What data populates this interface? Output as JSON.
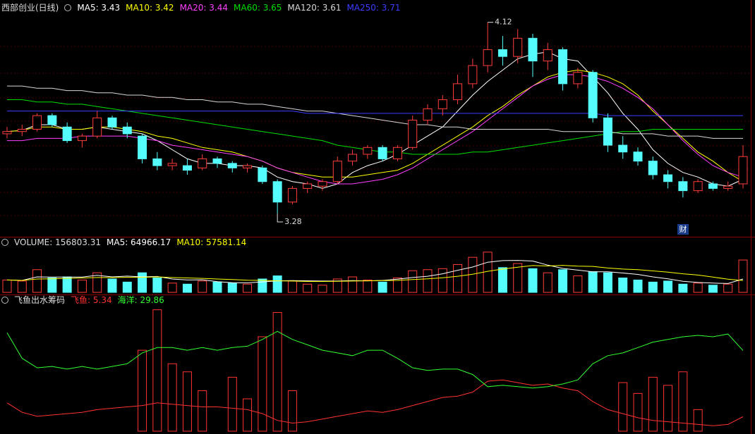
{
  "chart_data": [
    {
      "type": "candlestick",
      "title": "西部创业(日线)",
      "marker_text": "财",
      "up_color": "#ff3c3c",
      "down_color": "#54fcfc",
      "ylim": [
        3.19,
        4.15
      ],
      "open": [
        3.63,
        3.64,
        3.65,
        3.71,
        3.66,
        3.6,
        3.62,
        3.7,
        3.66,
        3.62,
        3.52,
        3.49,
        3.49,
        3.48,
        3.52,
        3.5,
        3.48,
        3.48,
        3.42,
        3.33,
        3.39,
        3.4,
        3.42,
        3.51,
        3.54,
        3.57,
        3.52,
        3.57,
        3.69,
        3.74,
        3.78,
        3.85,
        3.93,
        4.0,
        3.97,
        4.05,
        3.95,
        4.0,
        3.85,
        3.9,
        3.7,
        3.58,
        3.55,
        3.51,
        3.45,
        3.42,
        3.38,
        3.41,
        3.39,
        3.41
      ],
      "high": [
        3.66,
        3.67,
        3.72,
        3.72,
        3.68,
        3.63,
        3.73,
        3.71,
        3.68,
        3.63,
        3.55,
        3.52,
        3.52,
        3.54,
        3.53,
        3.51,
        3.5,
        3.49,
        3.43,
        3.4,
        3.42,
        3.43,
        3.53,
        3.56,
        3.58,
        3.58,
        3.58,
        3.71,
        3.76,
        3.8,
        3.89,
        3.96,
        4.12,
        4.06,
        4.09,
        4.07,
        4.03,
        4.01,
        3.92,
        3.91,
        3.72,
        3.62,
        3.57,
        3.53,
        3.47,
        3.44,
        3.43,
        3.42,
        3.42,
        3.58
      ],
      "low": [
        3.61,
        3.62,
        3.64,
        3.66,
        3.59,
        3.57,
        3.61,
        3.65,
        3.61,
        3.5,
        3.47,
        3.47,
        3.45,
        3.47,
        3.48,
        3.46,
        3.46,
        3.41,
        3.28,
        3.32,
        3.37,
        3.38,
        3.41,
        3.49,
        3.52,
        3.51,
        3.51,
        3.56,
        3.67,
        3.71,
        3.76,
        3.83,
        3.9,
        3.93,
        3.94,
        3.88,
        3.91,
        3.82,
        3.83,
        3.68,
        3.55,
        3.52,
        3.49,
        3.43,
        3.39,
        3.35,
        3.37,
        3.38,
        3.38,
        3.39
      ],
      "close": [
        3.64,
        3.65,
        3.71,
        3.67,
        3.6,
        3.62,
        3.7,
        3.66,
        3.63,
        3.52,
        3.49,
        3.5,
        3.47,
        3.52,
        3.5,
        3.48,
        3.49,
        3.42,
        3.33,
        3.39,
        3.41,
        3.42,
        3.51,
        3.54,
        3.57,
        3.52,
        3.57,
        3.69,
        3.74,
        3.78,
        3.85,
        3.93,
        4.0,
        3.97,
        4.05,
        3.95,
        4.0,
        3.85,
        3.9,
        3.7,
        3.58,
        3.55,
        3.51,
        3.45,
        3.42,
        3.38,
        3.42,
        3.39,
        3.4,
        3.53
      ],
      "series": [
        {
          "legend": "MA5: 3.43",
          "color": "#ffffff",
          "values": [
            3.64,
            3.645,
            3.67,
            3.67,
            3.65,
            3.65,
            3.66,
            3.65,
            3.64,
            3.63,
            3.6,
            3.56,
            3.52,
            3.5,
            3.5,
            3.49,
            3.49,
            3.48,
            3.44,
            3.42,
            3.41,
            3.39,
            3.41,
            3.46,
            3.49,
            3.51,
            3.54,
            3.58,
            3.62,
            3.66,
            3.73,
            3.8,
            3.86,
            3.91,
            3.96,
            3.98,
            3.99,
            3.96,
            3.95,
            3.88,
            3.81,
            3.72,
            3.65,
            3.56,
            3.5,
            3.46,
            3.44,
            3.41,
            3.4,
            3.43
          ]
        },
        {
          "legend": "MA10: 3.42",
          "color": "#ffff00",
          "values": [
            3.64,
            3.645,
            3.66,
            3.66,
            3.65,
            3.65,
            3.66,
            3.66,
            3.65,
            3.64,
            3.62,
            3.61,
            3.59,
            3.57,
            3.56,
            3.55,
            3.53,
            3.51,
            3.48,
            3.46,
            3.45,
            3.44,
            3.44,
            3.44,
            3.45,
            3.46,
            3.47,
            3.5,
            3.54,
            3.58,
            3.62,
            3.66,
            3.71,
            3.75,
            3.8,
            3.84,
            3.88,
            3.9,
            3.91,
            3.9,
            3.88,
            3.85,
            3.8,
            3.73,
            3.67,
            3.61,
            3.55,
            3.51,
            3.46,
            3.42
          ]
        },
        {
          "legend": "MA20: 3.44",
          "color": "#ff40ff",
          "values": [
            3.6,
            3.6,
            3.61,
            3.61,
            3.61,
            3.62,
            3.62,
            3.62,
            3.62,
            3.61,
            3.6,
            3.58,
            3.57,
            3.56,
            3.55,
            3.54,
            3.53,
            3.51,
            3.48,
            3.46,
            3.44,
            3.42,
            3.41,
            3.41,
            3.42,
            3.43,
            3.45,
            3.48,
            3.52,
            3.56,
            3.6,
            3.64,
            3.69,
            3.74,
            3.79,
            3.84,
            3.87,
            3.89,
            3.89,
            3.88,
            3.86,
            3.83,
            3.79,
            3.74,
            3.67,
            3.6,
            3.54,
            3.49,
            3.46,
            3.44
          ]
        },
        {
          "legend": "MA60: 3.65",
          "color": "#00e000",
          "values": [
            3.78,
            3.78,
            3.77,
            3.77,
            3.76,
            3.76,
            3.75,
            3.74,
            3.73,
            3.72,
            3.71,
            3.7,
            3.69,
            3.68,
            3.67,
            3.66,
            3.65,
            3.64,
            3.63,
            3.62,
            3.61,
            3.6,
            3.58,
            3.57,
            3.56,
            3.55,
            3.55,
            3.54,
            3.54,
            3.54,
            3.54,
            3.55,
            3.55,
            3.56,
            3.57,
            3.58,
            3.59,
            3.6,
            3.61,
            3.62,
            3.63,
            3.64,
            3.64,
            3.65,
            3.65,
            3.65,
            3.65,
            3.65,
            3.65,
            3.65
          ]
        },
        {
          "legend": "MA120: 3.61",
          "color": "#d8d8d8",
          "values": [
            3.84,
            3.84,
            3.83,
            3.83,
            3.82,
            3.82,
            3.81,
            3.81,
            3.8,
            3.8,
            3.79,
            3.79,
            3.78,
            3.78,
            3.77,
            3.77,
            3.76,
            3.76,
            3.75,
            3.74,
            3.73,
            3.73,
            3.72,
            3.71,
            3.7,
            3.69,
            3.68,
            3.67,
            3.67,
            3.66,
            3.66,
            3.65,
            3.65,
            3.65,
            3.65,
            3.65,
            3.65,
            3.64,
            3.64,
            3.64,
            3.64,
            3.63,
            3.63,
            3.63,
            3.62,
            3.62,
            3.62,
            3.61,
            3.61,
            3.61
          ]
        },
        {
          "legend": "MA250: 3.71",
          "color": "#3c3cff",
          "values": [
            3.73,
            3.73,
            3.73,
            3.73,
            3.73,
            3.73,
            3.73,
            3.73,
            3.73,
            3.73,
            3.73,
            3.73,
            3.73,
            3.73,
            3.73,
            3.73,
            3.73,
            3.73,
            3.73,
            3.73,
            3.72,
            3.72,
            3.72,
            3.72,
            3.72,
            3.72,
            3.72,
            3.72,
            3.72,
            3.72,
            3.72,
            3.72,
            3.72,
            3.72,
            3.72,
            3.72,
            3.72,
            3.72,
            3.72,
            3.72,
            3.71,
            3.71,
            3.71,
            3.71,
            3.71,
            3.71,
            3.71,
            3.71,
            3.71,
            3.71
          ]
        }
      ]
    },
    {
      "type": "bar",
      "legend": "VOLUME: 156803.31",
      "ylim": [
        0,
        215000
      ],
      "values": [
        60000,
        55000,
        110000,
        70000,
        75000,
        60000,
        95000,
        65000,
        50000,
        95000,
        70000,
        45000,
        40000,
        55000,
        50000,
        45000,
        40000,
        65000,
        80000,
        55000,
        40000,
        35000,
        65000,
        75000,
        60000,
        50000,
        70000,
        105000,
        110000,
        115000,
        135000,
        170000,
        195000,
        120000,
        140000,
        115000,
        95000,
        110000,
        80000,
        100000,
        95000,
        70000,
        60000,
        50000,
        55000,
        40000,
        45000,
        35000,
        40000,
        156803.31
      ],
      "series": [
        {
          "legend": "MA5: 64966.17",
          "color": "#ffffff",
          "values": [
            60000,
            58000,
            75000,
            74000,
            74000,
            74000,
            83000,
            75000,
            79000,
            75000,
            77000,
            65000,
            60000,
            61000,
            52000,
            47000,
            46000,
            51000,
            56000,
            57000,
            56000,
            55000,
            55000,
            57000,
            56000,
            58000,
            64000,
            72000,
            78000,
            90000,
            107000,
            123000,
            146000,
            154000,
            155000,
            152000,
            132000,
            116000,
            108000,
            100000,
            100000,
            94000,
            87000,
            75000,
            66000,
            54000,
            48000,
            45000,
            43000,
            64966.17
          ]
        },
        {
          "legend": "MA10: 57581.14",
          "color": "#ffff00",
          "values": [
            60000,
            58000,
            65000,
            66000,
            68000,
            70000,
            72000,
            72000,
            73000,
            73000,
            75000,
            72000,
            70000,
            68000,
            65000,
            62000,
            59000,
            58000,
            56000,
            55000,
            53000,
            53000,
            54000,
            55000,
            56000,
            57000,
            58000,
            62000,
            66000,
            71000,
            78000,
            88000,
            102000,
            113000,
            122000,
            130000,
            128000,
            131000,
            127000,
            126000,
            118000,
            113000,
            110000,
            104000,
            98000,
            90000,
            84000,
            74000,
            64000,
            57581.14
          ]
        }
      ]
    },
    {
      "type": "line",
      "title": "飞鱼出水筹码",
      "ylim": [
        0,
        47
      ],
      "series": [
        {
          "legend": "飞鱼: 5.34",
          "color": "#ff3232",
          "values": [
            10.5,
            7,
            5.5,
            6,
            6.5,
            7,
            8,
            8.5,
            9,
            9.5,
            10.5,
            10,
            9.5,
            9,
            9,
            8.5,
            8,
            6.5,
            4,
            3,
            3.5,
            4.5,
            5.5,
            6.5,
            7.5,
            7,
            8,
            9.5,
            11,
            12.5,
            13,
            14.5,
            18.5,
            19,
            18,
            17,
            17.5,
            16,
            15,
            11,
            8,
            6.5,
            5,
            4,
            3.5,
            3,
            2.5,
            2,
            2.5,
            5.34
          ]
        },
        {
          "legend": "海洋: 29.86",
          "color": "#32ff32",
          "values": [
            36.5,
            27,
            23.5,
            24,
            23,
            24,
            23,
            24,
            25,
            29,
            31,
            31,
            30,
            31,
            30,
            31,
            31.5,
            34,
            37,
            34,
            32,
            30,
            29,
            28,
            30,
            30,
            27,
            23.5,
            22.5,
            23,
            23,
            21,
            16.5,
            17,
            16.5,
            16,
            16.5,
            17.5,
            19,
            25,
            28,
            29,
            31,
            33,
            34,
            35,
            35.5,
            35,
            36,
            29.86
          ]
        }
      ],
      "bars": {
        "color": "#ff3232",
        "values": [
          0,
          0,
          0,
          0,
          0,
          0,
          0,
          0,
          0,
          30,
          45,
          25,
          22,
          15,
          0,
          20,
          12,
          35,
          44,
          15,
          0,
          0,
          0,
          0,
          0,
          0,
          0,
          0,
          0,
          0,
          0,
          0,
          0,
          0,
          0,
          0,
          0,
          0,
          0,
          0,
          0,
          18,
          14,
          20,
          17,
          22,
          8,
          0,
          0,
          0
        ]
      }
    }
  ]
}
